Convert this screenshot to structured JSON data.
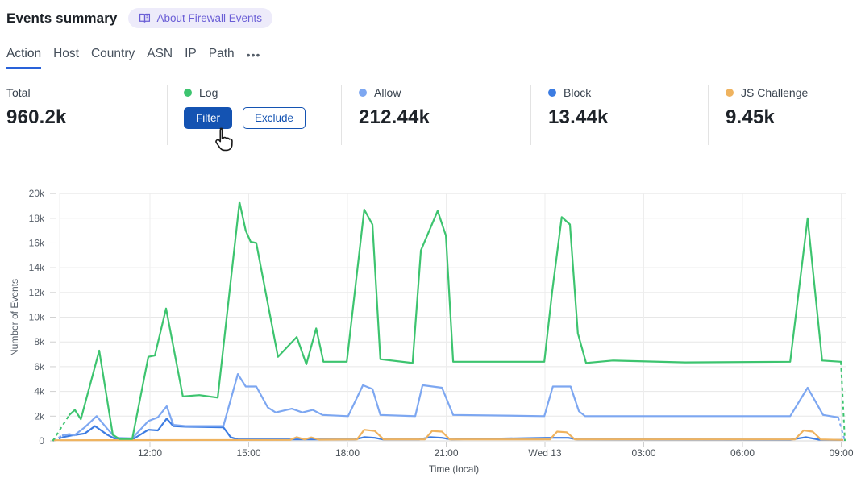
{
  "header": {
    "title": "Events summary",
    "about_badge_label": "About Firewall Events"
  },
  "tabs": {
    "items": [
      {
        "label": "Action",
        "active": true
      },
      {
        "label": "Host",
        "active": false
      },
      {
        "label": "Country",
        "active": false
      },
      {
        "label": "ASN",
        "active": false
      },
      {
        "label": "IP",
        "active": false
      },
      {
        "label": "Path",
        "active": false
      }
    ],
    "more_label": "•••"
  },
  "stats": [
    {
      "label": "Total",
      "value": "960.2k",
      "dot_color": null
    },
    {
      "label": "Log",
      "value": null,
      "dot_color": "#3dc46f",
      "buttons": [
        {
          "label": "Filter",
          "style": "primary"
        },
        {
          "label": "Exclude",
          "style": "secondary"
        }
      ]
    },
    {
      "label": "Allow",
      "value": "212.44k",
      "dot_color": "#7da7f1"
    },
    {
      "label": "Block",
      "value": "13.44k",
      "dot_color": "#3c7ce2"
    },
    {
      "label": "JS Challenge",
      "value": "9.45k",
      "dot_color": "#efb35f"
    }
  ],
  "colors": {
    "log_green": "#3dc46f",
    "allow_blue": "#7da7f1",
    "block_blue": "#3c7ce2",
    "js_challenge_orange": "#efb35f",
    "button_blue": "#1453b2",
    "tab_active_blue": "#2962d9",
    "badge_bg": "#edebfa",
    "badge_text": "#6a5ed6"
  },
  "chart_data": {
    "type": "line",
    "xlabel": "Time (local)",
    "ylabel": "Number of Events",
    "ylim": [
      0,
      20000
    ],
    "grid": true,
    "x_unit": "hours-local (24 = Wed 13 midnight)",
    "x_range": [
      9.05,
      33.11
    ],
    "y_ticks": [
      {
        "v": 0,
        "label": "0"
      },
      {
        "v": 2000,
        "label": "2k"
      },
      {
        "v": 4000,
        "label": "4k"
      },
      {
        "v": 6000,
        "label": "6k"
      },
      {
        "v": 8000,
        "label": "8k"
      },
      {
        "v": 10000,
        "label": "10k"
      },
      {
        "v": 12000,
        "label": "12k"
      },
      {
        "v": 14000,
        "label": "14k"
      },
      {
        "v": 16000,
        "label": "16k"
      },
      {
        "v": 18000,
        "label": "18k"
      },
      {
        "v": 20000,
        "label": "20k"
      }
    ],
    "x_ticks": [
      {
        "t": 12,
        "label": "12:00"
      },
      {
        "t": 15,
        "label": "15:00"
      },
      {
        "t": 18,
        "label": "18:00"
      },
      {
        "t": 21,
        "label": "21:00"
      },
      {
        "t": 24,
        "label": "Wed 13"
      },
      {
        "t": 27,
        "label": "03:00"
      },
      {
        "t": 30,
        "label": "06:00"
      },
      {
        "t": 33,
        "label": "09:00"
      }
    ],
    "series": [
      {
        "name": "Log",
        "color": "#3dc46f",
        "dash_start": true,
        "dash_end": true,
        "draw_order": 4,
        "points": [
          [
            9.05,
            0
          ],
          [
            9.55,
            2100
          ],
          [
            9.72,
            2500
          ],
          [
            9.9,
            1750
          ],
          [
            10.46,
            7300
          ],
          [
            10.87,
            500
          ],
          [
            11.07,
            150
          ],
          [
            11.46,
            150
          ],
          [
            11.95,
            6800
          ],
          [
            12.15,
            6900
          ],
          [
            12.49,
            10700
          ],
          [
            13.0,
            3600
          ],
          [
            13.5,
            3700
          ],
          [
            14.06,
            3500
          ],
          [
            14.72,
            19300
          ],
          [
            14.91,
            17000
          ],
          [
            15.06,
            16100
          ],
          [
            15.23,
            16000
          ],
          [
            15.89,
            6800
          ],
          [
            16.46,
            8400
          ],
          [
            16.75,
            6200
          ],
          [
            17.05,
            9100
          ],
          [
            17.27,
            6400
          ],
          [
            17.98,
            6400
          ],
          [
            18.51,
            18700
          ],
          [
            18.76,
            17500
          ],
          [
            19.0,
            6600
          ],
          [
            19.98,
            6300
          ],
          [
            20.23,
            15400
          ],
          [
            20.74,
            18600
          ],
          [
            20.99,
            16600
          ],
          [
            21.21,
            6400
          ],
          [
            22.14,
            6400
          ],
          [
            23.98,
            6400
          ],
          [
            24.22,
            12100
          ],
          [
            24.51,
            18100
          ],
          [
            24.76,
            17500
          ],
          [
            25.0,
            8700
          ],
          [
            25.25,
            6300
          ],
          [
            26.06,
            6500
          ],
          [
            28.26,
            6350
          ],
          [
            31.45,
            6400
          ],
          [
            31.98,
            18000
          ],
          [
            32.42,
            6500
          ],
          [
            32.99,
            6400
          ],
          [
            33.11,
            0
          ]
        ]
      },
      {
        "name": "Allow",
        "color": "#7da7f1",
        "dash_start": true,
        "dash_end": true,
        "draw_order": 2,
        "points": [
          [
            9.05,
            0
          ],
          [
            9.35,
            450
          ],
          [
            9.55,
            550
          ],
          [
            9.7,
            450
          ],
          [
            10.02,
            1100
          ],
          [
            10.38,
            2000
          ],
          [
            10.7,
            1000
          ],
          [
            10.95,
            250
          ],
          [
            11.46,
            200
          ],
          [
            11.95,
            1600
          ],
          [
            12.24,
            1900
          ],
          [
            12.51,
            2800
          ],
          [
            12.71,
            1300
          ],
          [
            13.08,
            1200
          ],
          [
            14.23,
            1200
          ],
          [
            14.67,
            5400
          ],
          [
            14.91,
            4400
          ],
          [
            15.23,
            4400
          ],
          [
            15.58,
            2700
          ],
          [
            15.82,
            2300
          ],
          [
            16.31,
            2600
          ],
          [
            16.63,
            2300
          ],
          [
            16.95,
            2500
          ],
          [
            17.24,
            2100
          ],
          [
            18.02,
            2000
          ],
          [
            18.47,
            4500
          ],
          [
            18.76,
            4200
          ],
          [
            19.0,
            2100
          ],
          [
            20.06,
            2000
          ],
          [
            20.28,
            4500
          ],
          [
            20.87,
            4300
          ],
          [
            21.21,
            2100
          ],
          [
            23.98,
            2000
          ],
          [
            24.24,
            4400
          ],
          [
            24.78,
            4400
          ],
          [
            25.03,
            2400
          ],
          [
            25.22,
            2000
          ],
          [
            31.45,
            2000
          ],
          [
            31.98,
            4300
          ],
          [
            32.45,
            2100
          ],
          [
            32.91,
            1900
          ],
          [
            33.11,
            0
          ]
        ]
      },
      {
        "name": "Block",
        "color": "#3c7ce2",
        "dash_start": true,
        "dash_end": false,
        "draw_order": 1,
        "points": [
          [
            9.05,
            0
          ],
          [
            9.35,
            300
          ],
          [
            9.65,
            450
          ],
          [
            10.02,
            600
          ],
          [
            10.33,
            1200
          ],
          [
            10.7,
            500
          ],
          [
            10.95,
            150
          ],
          [
            11.46,
            100
          ],
          [
            11.95,
            900
          ],
          [
            12.24,
            850
          ],
          [
            12.51,
            1800
          ],
          [
            12.71,
            1200
          ],
          [
            13.08,
            1150
          ],
          [
            14.23,
            1100
          ],
          [
            14.45,
            300
          ],
          [
            14.67,
            120
          ],
          [
            18.22,
            120
          ],
          [
            18.51,
            300
          ],
          [
            18.83,
            250
          ],
          [
            19.08,
            120
          ],
          [
            20.18,
            120
          ],
          [
            20.5,
            300
          ],
          [
            20.87,
            250
          ],
          [
            21.16,
            120
          ],
          [
            24.05,
            250
          ],
          [
            24.71,
            250
          ],
          [
            24.98,
            120
          ],
          [
            31.45,
            100
          ],
          [
            31.93,
            300
          ],
          [
            32.33,
            100
          ],
          [
            33.04,
            80
          ]
        ]
      },
      {
        "name": "JS Challenge",
        "color": "#efb35f",
        "dash_start": false,
        "dash_end": false,
        "draw_order": 3,
        "points": [
          [
            9.05,
            50
          ],
          [
            16.26,
            80
          ],
          [
            16.46,
            300
          ],
          [
            16.7,
            120
          ],
          [
            16.9,
            280
          ],
          [
            17.14,
            100
          ],
          [
            18.29,
            120
          ],
          [
            18.51,
            900
          ],
          [
            18.83,
            800
          ],
          [
            19.1,
            120
          ],
          [
            20.35,
            120
          ],
          [
            20.57,
            800
          ],
          [
            20.87,
            750
          ],
          [
            21.11,
            120
          ],
          [
            24.15,
            120
          ],
          [
            24.37,
            750
          ],
          [
            24.66,
            700
          ],
          [
            24.91,
            120
          ],
          [
            31.59,
            120
          ],
          [
            31.86,
            850
          ],
          [
            32.13,
            750
          ],
          [
            32.38,
            120
          ],
          [
            33.04,
            80
          ]
        ]
      }
    ]
  }
}
